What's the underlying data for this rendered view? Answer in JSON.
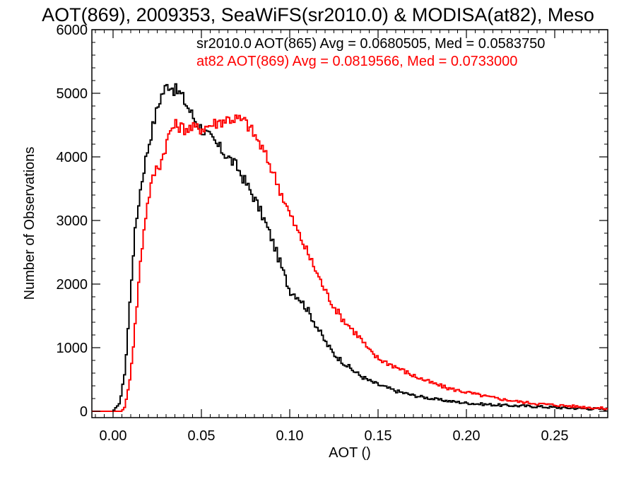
{
  "chart_data": {
    "type": "line",
    "title": "AOT(869), 2009353, SeaWiFS(sr2010.0) & MODISA(at82), Meso",
    "xlabel": "AOT ()",
    "ylabel": "Number of Observations",
    "xlim": [
      -0.012,
      0.28
    ],
    "ylim": [
      -100,
      6000
    ],
    "xticks": [
      0.0,
      0.05,
      0.1,
      0.15,
      0.2,
      0.25
    ],
    "xtick_labels": [
      "0.00",
      "0.05",
      "0.10",
      "0.15",
      "0.20",
      "0.25"
    ],
    "yticks": [
      0,
      1000,
      2000,
      3000,
      4000,
      5000,
      6000
    ],
    "ytick_labels": [
      "0",
      "1000",
      "2000",
      "3000",
      "4000",
      "5000",
      "6000"
    ],
    "grid": false,
    "series": [
      {
        "color": "#000000",
        "annotation": "sr2010.0 AOT(865) Avg = 0.0680505, Med = 0.0583750",
        "x": [
          -0.012,
          0.0,
          0.003,
          0.005,
          0.007,
          0.009,
          0.012,
          0.015,
          0.018,
          0.021,
          0.024,
          0.027,
          0.03,
          0.032,
          0.035,
          0.038,
          0.041,
          0.044,
          0.047,
          0.05,
          0.055,
          0.06,
          0.065,
          0.07,
          0.075,
          0.08,
          0.085,
          0.09,
          0.095,
          0.1,
          0.105,
          0.11,
          0.115,
          0.12,
          0.125,
          0.13,
          0.135,
          0.14,
          0.145,
          0.15,
          0.16,
          0.17,
          0.18,
          0.19,
          0.2,
          0.21,
          0.22,
          0.23,
          0.24,
          0.25,
          0.26,
          0.27,
          0.28
        ],
        "y": [
          0,
          0,
          80,
          300,
          700,
          1500,
          2700,
          3400,
          3900,
          4300,
          4650,
          4950,
          5100,
          5150,
          5050,
          5000,
          4850,
          4700,
          4550,
          4450,
          4300,
          4150,
          4000,
          3850,
          3600,
          3350,
          3050,
          2700,
          2300,
          1900,
          1800,
          1600,
          1350,
          1100,
          900,
          780,
          660,
          560,
          480,
          420,
          320,
          250,
          200,
          160,
          130,
          110,
          95,
          85,
          75,
          60,
          50,
          40,
          35
        ]
      },
      {
        "color": "#ff0000",
        "annotation": "at82 AOT(869) Avg = 0.0819566, Med = 0.0733000",
        "x": [
          -0.012,
          0.005,
          0.007,
          0.009,
          0.011,
          0.013,
          0.015,
          0.018,
          0.021,
          0.024,
          0.027,
          0.03,
          0.033,
          0.036,
          0.04,
          0.045,
          0.05,
          0.055,
          0.06,
          0.065,
          0.07,
          0.075,
          0.08,
          0.085,
          0.09,
          0.095,
          0.1,
          0.105,
          0.11,
          0.115,
          0.12,
          0.125,
          0.13,
          0.135,
          0.14,
          0.145,
          0.15,
          0.16,
          0.17,
          0.18,
          0.19,
          0.2,
          0.21,
          0.22,
          0.23,
          0.24,
          0.25,
          0.26,
          0.27,
          0.28
        ],
        "y": [
          0,
          0,
          100,
          400,
          900,
          1500,
          2200,
          3000,
          3500,
          3800,
          3900,
          4200,
          4450,
          4500,
          4450,
          4450,
          4450,
          4500,
          4550,
          4600,
          4600,
          4550,
          4350,
          4100,
          3800,
          3450,
          3100,
          2800,
          2500,
          2200,
          1900,
          1650,
          1450,
          1300,
          1150,
          950,
          830,
          700,
          560,
          450,
          360,
          300,
          240,
          190,
          150,
          120,
          100,
          80,
          60,
          40
        ]
      }
    ]
  }
}
